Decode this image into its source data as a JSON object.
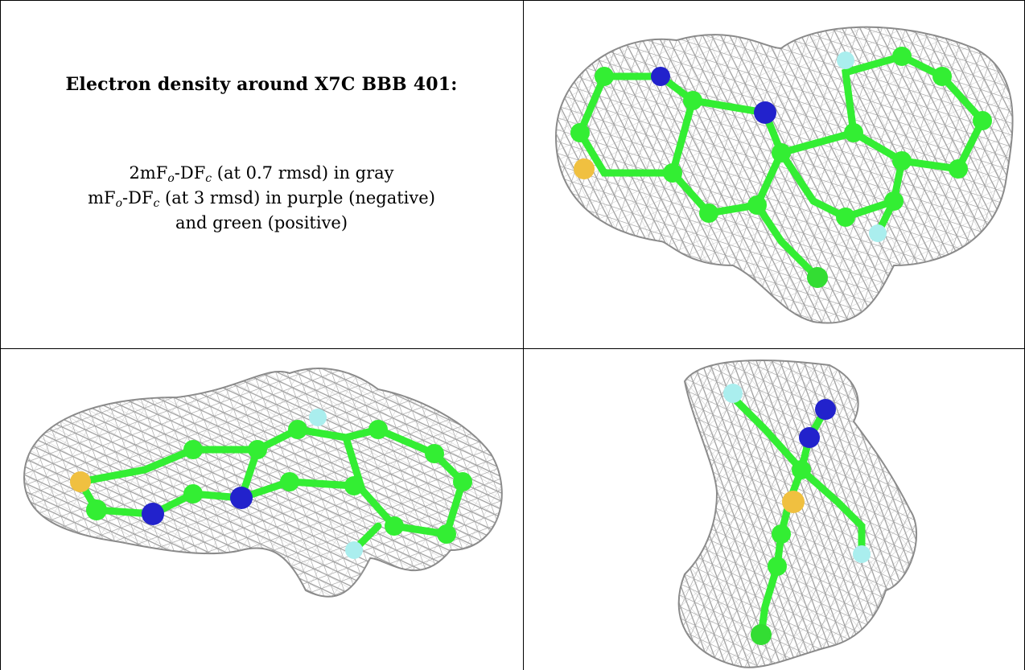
{
  "caption": {
    "title": "Electron density around X7C BBB 401:",
    "line1": {
      "pre": "2mF",
      "sub1": "o",
      "mid": "-DF",
      "sub2": "c",
      "post": " (at 0.7 rmsd) in gray"
    },
    "line2": {
      "pre": "mF",
      "sub1": "o",
      "mid": "-DF",
      "sub2": "c",
      "post": " (at 3 rmsd) in purple (negative)"
    },
    "line3": "and green (positive)"
  },
  "colors": {
    "carbon": "#33ee33",
    "nitrogen": "#2222cc",
    "sulfur": "#f0c040",
    "fluorine": "#aaeeee",
    "chlorine": "#33dd33",
    "mesh": "#9a9a9a"
  }
}
